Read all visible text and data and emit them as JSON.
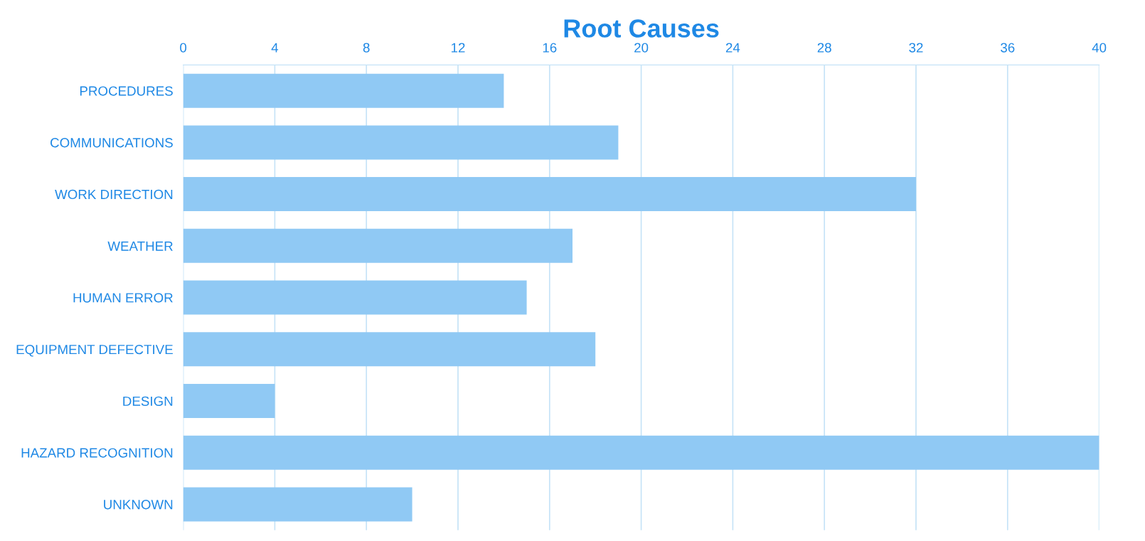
{
  "chart_data": {
    "type": "bar",
    "orientation": "horizontal",
    "title": "Root Causes",
    "categories": [
      "PROCEDURES",
      "COMMUNICATIONS",
      "WORK DIRECTION",
      "WEATHER",
      "HUMAN ERROR",
      "EQUIPMENT DEFECTIVE",
      "DESIGN",
      "HAZARD RECOGNITION",
      "UNKNOWN"
    ],
    "values": [
      14,
      19,
      32,
      17,
      15,
      18,
      4,
      40,
      10
    ],
    "color": "#90c9f4",
    "xlim": [
      0,
      40
    ],
    "xticks": [
      0,
      4,
      8,
      12,
      16,
      20,
      24,
      28,
      32,
      36,
      40
    ],
    "grid": "x"
  }
}
